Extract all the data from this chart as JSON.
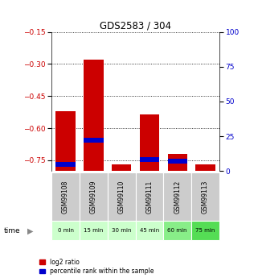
{
  "title": "GDS2583 / 304",
  "samples": [
    "GSM99108",
    "GSM99109",
    "GSM99110",
    "GSM99111",
    "GSM99112",
    "GSM99113"
  ],
  "time_labels": [
    "0 min",
    "15 min",
    "30 min",
    "45 min",
    "60 min",
    "75 min"
  ],
  "time_colors": [
    "#ccffcc",
    "#ccffcc",
    "#ccffcc",
    "#ccffcc",
    "#88ee88",
    "#55dd55"
  ],
  "log2_values": [
    -0.52,
    -0.28,
    -0.77,
    -0.535,
    -0.72,
    -0.77
  ],
  "percentile_values": [
    5,
    22,
    0,
    8,
    7,
    0
  ],
  "ylim_left": [
    -0.8,
    -0.15
  ],
  "ylim_right": [
    0,
    100
  ],
  "yticks_left": [
    -0.75,
    -0.6,
    -0.45,
    -0.3,
    -0.15
  ],
  "yticks_right": [
    0,
    25,
    50,
    75,
    100
  ],
  "bar_width": 0.7,
  "red_color": "#cc0000",
  "blue_color": "#0000cc",
  "sample_bg_color": "#cccccc",
  "legend_red": "log2 ratio",
  "legend_blue": "percentile rank within the sample"
}
